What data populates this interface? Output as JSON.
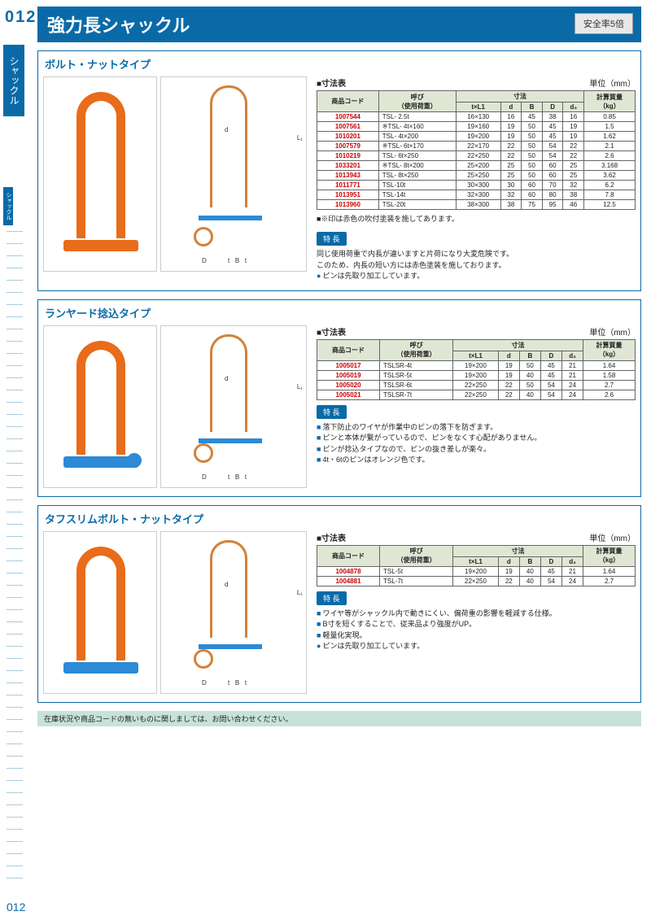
{
  "page_number": "012",
  "sidebar_label": "シャックル",
  "sidebar_sub": "シャックル",
  "title": "強力長シャックル",
  "safety": "安全率5倍",
  "footer": "在庫状況や商品コードの無いものに関しましては、お問い合わせください。",
  "table_label": "■寸法表",
  "unit_label": "単位（mm）",
  "features_label": "特 長",
  "table_headers": {
    "code": "商品コード",
    "name": "呼び\n（使用荷重）",
    "dim": "寸法",
    "tL1": "t×L1",
    "d": "d",
    "B": "B",
    "D": "D",
    "d3": "d₃",
    "weight": "計算質量\n（kg）"
  },
  "sections": [
    {
      "title": "ボルト・ナットタイプ",
      "rows": [
        [
          "1007544",
          "TSL- 2.5t",
          "16×130",
          "16",
          "45",
          "38",
          "16",
          "0.85"
        ],
        [
          "1007561",
          "※TSL-  4t×160",
          "19×160",
          "19",
          "50",
          "45",
          "19",
          "1.5"
        ],
        [
          "1010201",
          "TSL-  4t×200",
          "19×200",
          "19",
          "50",
          "45",
          "19",
          "1.62"
        ],
        [
          "1007579",
          "※TSL-  6t×170",
          "22×170",
          "22",
          "50",
          "54",
          "22",
          "2.1"
        ],
        [
          "1010219",
          "TSL-  6t×250",
          "22×250",
          "22",
          "50",
          "54",
          "22",
          "2.6"
        ],
        [
          "1033201",
          "※TSL-  8t×200",
          "25×200",
          "25",
          "50",
          "60",
          "25",
          "3.168"
        ],
        [
          "1013943",
          "TSL-  8t×250",
          "25×250",
          "25",
          "50",
          "60",
          "25",
          "3.62"
        ],
        [
          "1011771",
          "TSL-10t",
          "30×300",
          "30",
          "60",
          "70",
          "32",
          "6.2"
        ],
        [
          "1013951",
          "TSL-14t",
          "32×300",
          "32",
          "60",
          "80",
          "38",
          "7.8"
        ],
        [
          "1013960",
          "TSL-20t",
          "38×300",
          "38",
          "75",
          "95",
          "46",
          "12.5"
        ]
      ],
      "pin_color": "orange",
      "note": "■※印は赤色の吹付塗装を施してあります。",
      "features": [
        {
          "type": "text",
          "text": "同じ使用荷重で内長が違いますと片荷になり大変危険です。\nこのため、内長の短い方には赤色塗装を施しております。"
        },
        {
          "type": "dot",
          "text": "ピンは先取り加工しています。"
        }
      ]
    },
    {
      "title": "ランヤード捻込タイプ",
      "rows": [
        [
          "1005017",
          "TSLSR-4t",
          "19×200",
          "19",
          "50",
          "45",
          "21",
          "1.64"
        ],
        [
          "1005019",
          "TSLSR-5t",
          "19×200",
          "19",
          "40",
          "45",
          "21",
          "1.58"
        ],
        [
          "1005020",
          "TSLSR-6t",
          "22×250",
          "22",
          "50",
          "54",
          "24",
          "2.7"
        ],
        [
          "1005021",
          "TSLSR-7t",
          "22×250",
          "22",
          "40",
          "54",
          "24",
          "2.6"
        ]
      ],
      "pin_color": "blue",
      "has_ring": true,
      "features": [
        {
          "type": "bullet",
          "text": "落下防止のワイヤが作業中のピンの落下を防ぎます。"
        },
        {
          "type": "bullet",
          "text": "ピンと本体が繋がっているので、ピンをなくす心配がありません。"
        },
        {
          "type": "bullet",
          "text": "ピンが捻込タイプなので、ピンの抜き差しが楽々。"
        },
        {
          "type": "bullet",
          "text": "4t・6tのピンはオレンジ色です。"
        }
      ]
    },
    {
      "title": "タフスリムボルト・ナットタイプ",
      "rows": [
        [
          "1004878",
          "TSL-5t",
          "19×200",
          "19",
          "40",
          "45",
          "21",
          "1.64"
        ],
        [
          "1004881",
          "TSL-7t",
          "22×250",
          "22",
          "40",
          "54",
          "24",
          "2.7"
        ]
      ],
      "pin_color": "blue",
      "features": [
        {
          "type": "bullet",
          "text": "ワイヤ等がシャックル内で動きにくい、偏荷重の影響を軽減する仕様。"
        },
        {
          "type": "bullet",
          "text": "B寸を短くすることで、従来品より強度がUP。"
        },
        {
          "type": "bullet",
          "text": "軽量化実現。"
        },
        {
          "type": "dot",
          "text": "ピンは先取り加工しています。"
        }
      ]
    }
  ]
}
